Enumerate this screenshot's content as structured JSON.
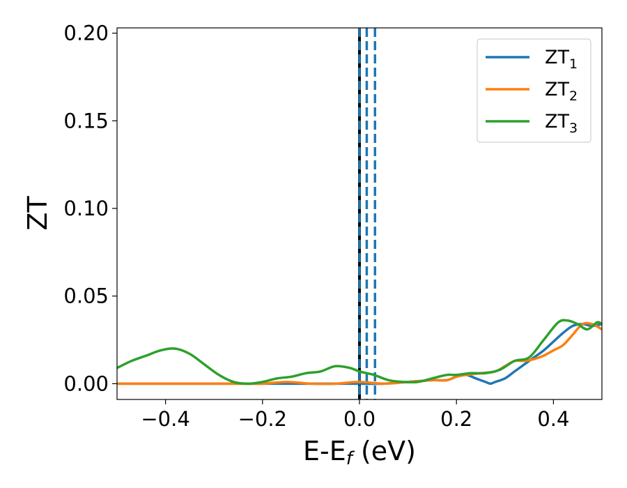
{
  "chart_data": {
    "type": "line",
    "xlabel": "E-E",
    "xlabel_sub": "f",
    "xlabel_unit": " (eV)",
    "ylabel": "ZT",
    "xlim": [
      -0.5,
      0.5
    ],
    "ylim": [
      -0.009,
      0.203
    ],
    "x_ticks": [
      -0.4,
      -0.2,
      0.0,
      0.2,
      0.4
    ],
    "x_tick_labels": [
      "−0.4",
      "−0.2",
      "0.0",
      "0.2",
      "0.4"
    ],
    "y_ticks": [
      0.0,
      0.05,
      0.1,
      0.15,
      0.2
    ],
    "y_tick_labels": [
      "0.00",
      "0.05",
      "0.10",
      "0.15",
      "0.20"
    ],
    "grid": false,
    "legend_position": "top-right",
    "vlines": [
      {
        "x": 0.0,
        "style": "solid",
        "color": "#000000"
      },
      {
        "x": 0.0,
        "style": "dashed",
        "color": "#1f77b4"
      },
      {
        "x": 0.015,
        "style": "dashed",
        "color": "#1f77b4"
      },
      {
        "x": 0.032,
        "style": "dashed",
        "color": "#1f77b4"
      }
    ],
    "series": [
      {
        "name": "ZT",
        "name_sub": "1",
        "color": "#1f77b4",
        "x": [
          -0.5,
          -0.45,
          -0.4,
          -0.35,
          -0.3,
          -0.25,
          -0.2,
          -0.15,
          -0.1,
          -0.05,
          0.0,
          0.05,
          0.1,
          0.15,
          0.18,
          0.2,
          0.22,
          0.24,
          0.26,
          0.27,
          0.28,
          0.3,
          0.32,
          0.34,
          0.36,
          0.38,
          0.4,
          0.42,
          0.44,
          0.46,
          0.48,
          0.5
        ],
        "y": [
          0.0,
          0.0,
          0.0,
          0.0,
          0.0,
          0.0,
          0.0,
          0.0,
          0.0,
          0.0,
          0.0,
          0.0,
          0.001,
          0.002,
          0.002,
          0.004,
          0.005,
          0.003,
          0.001,
          0.0,
          0.001,
          0.003,
          0.007,
          0.011,
          0.015,
          0.019,
          0.024,
          0.029,
          0.033,
          0.034,
          0.033,
          0.034
        ]
      },
      {
        "name": "ZT",
        "name_sub": "2",
        "color": "#ff7f0e",
        "x": [
          -0.5,
          -0.45,
          -0.4,
          -0.35,
          -0.3,
          -0.25,
          -0.2,
          -0.15,
          -0.1,
          -0.05,
          0.0,
          0.05,
          0.1,
          0.15,
          0.18,
          0.2,
          0.22,
          0.25,
          0.28,
          0.3,
          0.32,
          0.34,
          0.36,
          0.38,
          0.4,
          0.42,
          0.44,
          0.46,
          0.48,
          0.5
        ],
        "y": [
          0.0,
          0.0,
          0.0,
          0.0,
          0.0,
          0.0,
          0.0,
          0.001,
          0.0,
          0.0,
          0.001,
          0.0,
          0.001,
          0.002,
          0.002,
          0.004,
          0.005,
          0.006,
          0.007,
          0.01,
          0.013,
          0.013,
          0.014,
          0.016,
          0.019,
          0.022,
          0.028,
          0.034,
          0.034,
          0.031
        ]
      },
      {
        "name": "ZT",
        "name_sub": "3",
        "color": "#2ca02c",
        "x": [
          -0.5,
          -0.47,
          -0.44,
          -0.41,
          -0.38,
          -0.35,
          -0.32,
          -0.29,
          -0.26,
          -0.23,
          -0.2,
          -0.17,
          -0.14,
          -0.11,
          -0.08,
          -0.05,
          -0.02,
          0.0,
          0.03,
          0.06,
          0.09,
          0.12,
          0.15,
          0.18,
          0.2,
          0.23,
          0.26,
          0.29,
          0.32,
          0.35,
          0.38,
          0.41,
          0.43,
          0.45,
          0.47,
          0.49,
          0.5
        ],
        "y": [
          0.009,
          0.013,
          0.016,
          0.019,
          0.02,
          0.017,
          0.011,
          0.005,
          0.001,
          0.0,
          0.001,
          0.003,
          0.004,
          0.006,
          0.007,
          0.01,
          0.009,
          0.007,
          0.005,
          0.002,
          0.001,
          0.001,
          0.003,
          0.005,
          0.005,
          0.006,
          0.006,
          0.008,
          0.013,
          0.015,
          0.025,
          0.035,
          0.036,
          0.034,
          0.031,
          0.035,
          0.034
        ]
      }
    ]
  }
}
